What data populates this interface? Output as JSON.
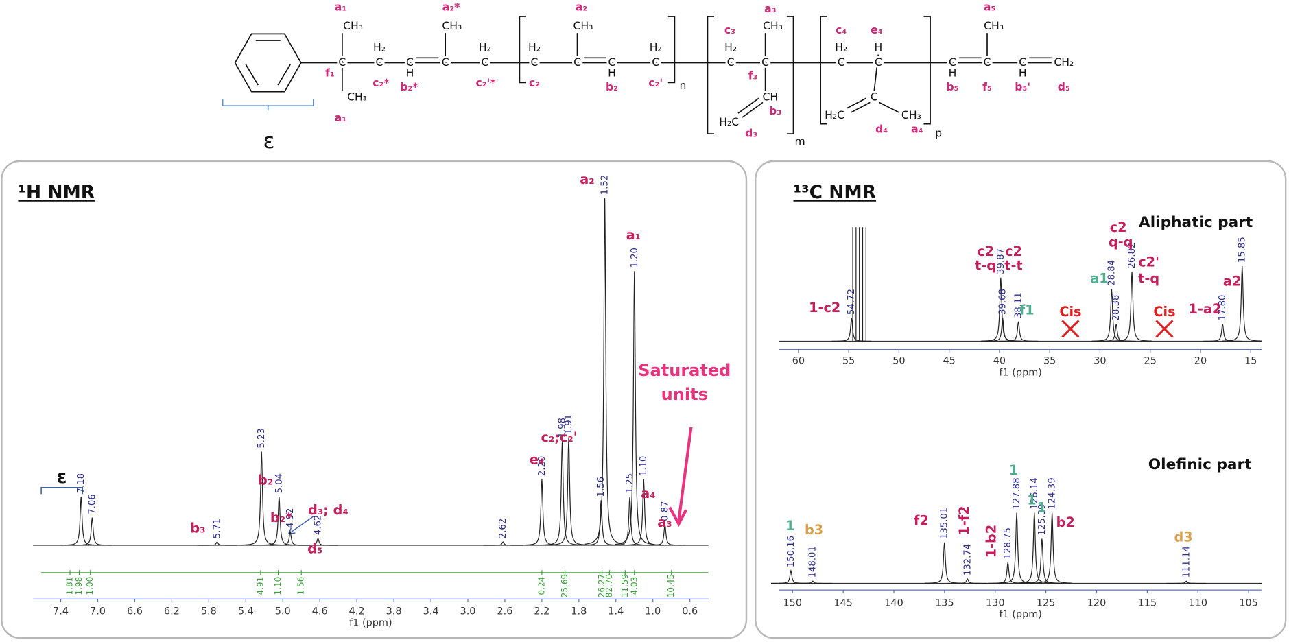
{
  "structure": {
    "atoms": [
      "CH₃",
      "C",
      "CH₃",
      "H₂",
      "C",
      "C",
      "H",
      "C",
      "CH₃",
      "H₂",
      "C",
      "H₂",
      "C",
      "CH₃",
      "C",
      "C",
      "H",
      "H₂",
      "C",
      "n",
      "H₂",
      "C",
      "CH₃",
      "C",
      "CH",
      "H₂C",
      "m",
      "H₂",
      "C",
      "H",
      "C",
      "C",
      "H₂C",
      "CH₃",
      "p",
      "C",
      "H",
      "C",
      "CH₃",
      "C",
      "H",
      "CH₂"
    ],
    "labels": [
      "a₁",
      "a₁",
      "f₁",
      "c₂*",
      "b₂*",
      "a₂*",
      "c₂'*",
      "a₂",
      "c₂",
      "b₂",
      "c₂'",
      "c₃",
      "a₃",
      "f₃",
      "b₃",
      "d₃",
      "c₄",
      "e₄",
      "d₄",
      "a₄",
      "a₅",
      "b₅",
      "f₅",
      "b₅'",
      "d₅"
    ],
    "epsilon": "ε"
  },
  "chart_data": [
    {
      "type": "spectrum",
      "title": "¹H NMR",
      "x_label": "f1 (ppm)",
      "xlim": [
        7.7,
        0.4
      ],
      "ylim": [
        0,
        100
      ],
      "xticks": [
        7.4,
        {
          "value": 7,
          "label": "7.0"
        },
        6.6,
        6.2,
        5.8,
        5.4,
        {
          "value": 5,
          "label": "5.0"
        },
        4.6,
        4.2,
        3.8,
        3.4,
        {
          "value": 3,
          "label": "3.0"
        },
        2.6,
        2.2,
        1.8,
        1.4,
        {
          "value": 1,
          "label": "1.0"
        },
        0.6
      ],
      "x": [
        7.18,
        7.06,
        5.71,
        5.23,
        5.04,
        4.92,
        4.62,
        2.62,
        2.2,
        1.98,
        1.91,
        1.56,
        1.52,
        1.25,
        1.2,
        1.1,
        0.87
      ],
      "x_labels": [
        "7.18",
        "7.06",
        "5.71",
        "5.23",
        "5.04",
        "4.92",
        "4.62",
        "2.62",
        "2.20",
        "1.98",
        "1.91",
        "1.56",
        "1.52",
        "1.25",
        "1.20",
        "1.10",
        "0.87"
      ],
      "values": [
        14,
        8,
        1,
        27,
        14,
        4,
        2,
        1,
        19,
        30,
        31,
        13,
        100,
        14,
        79,
        19,
        6
      ],
      "annotations": [
        "ε",
        "b₃",
        "b₂",
        "b₂*",
        "d₃; d₄",
        "d₅",
        "e₄",
        "c₂;c₂'",
        "a₁",
        "a₄",
        "a₃",
        "a₂",
        "Saturated",
        "units"
      ],
      "integrals": {
        "x": [
          7.3,
          7.2,
          7.08,
          5.24,
          5.05,
          4.8,
          2.2,
          1.95,
          1.55,
          1.47,
          1.3,
          1.2,
          0.8
        ],
        "labels": [
          "1.81",
          "1.98",
          "1.00",
          "4.91",
          "1.10",
          "1.56",
          "0.24",
          "25.69",
          "26.27",
          "82.70",
          "11.59",
          "4.03",
          "10.45"
        ]
      }
    },
    {
      "type": "spectrum",
      "title": "¹³C NMR",
      "x_label": "f1 (ppm)",
      "xlim": [
        61.9,
        13.9
      ],
      "ylim": [
        0,
        100
      ],
      "xticks": [
        60,
        55,
        50,
        45,
        40,
        35,
        30,
        25,
        20,
        15
      ],
      "x": [
        54.72,
        39.87,
        39.68,
        38.11,
        28.84,
        28.38,
        26.82,
        17.8,
        15.85
      ],
      "x_labels": [
        "54.72",
        "39.87",
        "39.68",
        "38.11",
        "28.84",
        "28.38",
        "26.82",
        "17.80",
        "15.85"
      ],
      "values": [
        20,
        55,
        20,
        17,
        45,
        15,
        60,
        15,
        65
      ],
      "annotations": [
        "Aliphatic part",
        "1-c2",
        "c2",
        "t-q",
        "c2",
        "t-t",
        "f1",
        "Cis",
        "a1",
        "c2",
        "q-q",
        "c2'",
        "t-q",
        "Cis",
        "1-a2",
        "a2"
      ]
    },
    {
      "type": "spectrum",
      "x_label": "f1 (ppm)",
      "xlim": [
        151.3,
        103.7
      ],
      "ylim": [
        0,
        100
      ],
      "xticks": [
        150,
        145,
        140,
        135,
        130,
        125,
        120,
        115,
        110,
        105
      ],
      "x": [
        150.16,
        148.01,
        135.01,
        132.74,
        128.75,
        127.88,
        126.14,
        125.39,
        124.39,
        111.14
      ],
      "x_labels": [
        "150.16",
        "148.01",
        "135.01",
        "132.74",
        "128.75",
        "127.88",
        "126.14",
        "125.39",
        "124.39",
        "111.14"
      ],
      "values": [
        17,
        3,
        55,
        6,
        28,
        95,
        95,
        60,
        95,
        3
      ],
      "annotations": [
        "Olefinic part",
        "1",
        "b3",
        "f2",
        "1-f2",
        "1-b2",
        "1",
        "1",
        "1",
        "b2",
        "d3"
      ]
    }
  ]
}
